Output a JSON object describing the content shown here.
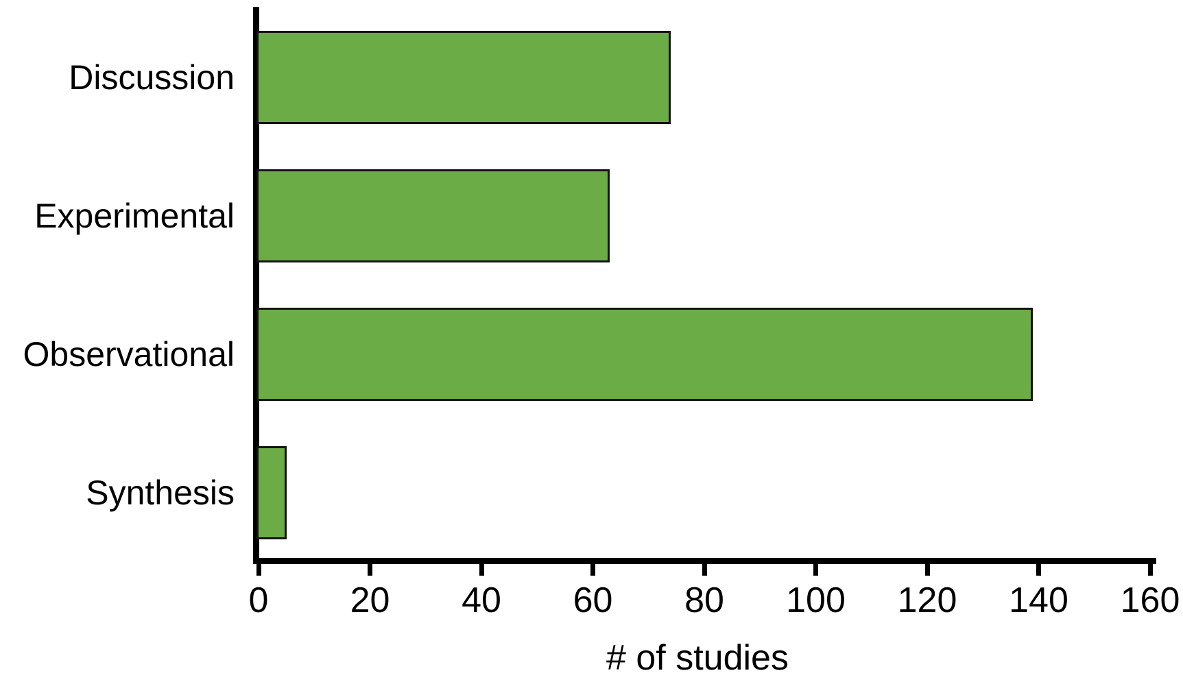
{
  "chart_data": {
    "type": "bar",
    "orientation": "horizontal",
    "categories": [
      "Discussion",
      "Experimental",
      "Observational",
      "Synthesis"
    ],
    "values": [
      74,
      63,
      139,
      5
    ],
    "title": "",
    "xlabel": "# of studies",
    "ylabel": "",
    "xlim": [
      0,
      160
    ],
    "xticks": [
      0,
      20,
      40,
      60,
      80,
      100,
      120,
      140,
      160
    ],
    "grid": "off",
    "legend": "none",
    "bar_color": "#6cac46",
    "bar_border_color": "#141414",
    "axis_color": "#000000",
    "text_color": "#000000"
  }
}
